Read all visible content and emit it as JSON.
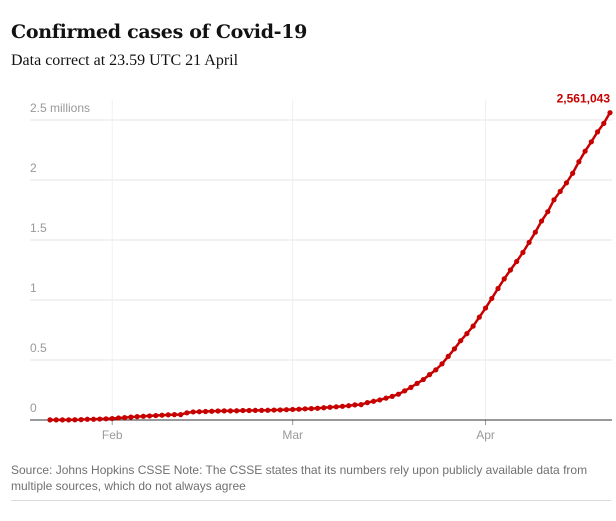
{
  "chart_data": {
    "type": "line",
    "title": "Confirmed cases of Covid-19",
    "subtitle": "Data correct at 23.59 UTC 21 April",
    "source": "Source: Johns Hopkins CSSE Note: The CSSE states that its numbers rely upon publicly available data from multiple sources, which do not always agree",
    "x": [
      0,
      1,
      2,
      3,
      4,
      5,
      6,
      7,
      8,
      9,
      10,
      11,
      12,
      13,
      14,
      15,
      16,
      17,
      18,
      19,
      20,
      21,
      22,
      23,
      24,
      25,
      26,
      27,
      28,
      29,
      30,
      31,
      32,
      33,
      34,
      35,
      36,
      37,
      38,
      39,
      40,
      41,
      42,
      43,
      44,
      45,
      46,
      47,
      48,
      49,
      50,
      51,
      52,
      53,
      54,
      55,
      56,
      57,
      58,
      59,
      60,
      61,
      62,
      63,
      64,
      65,
      66,
      67,
      68,
      69,
      70,
      71,
      72,
      73,
      74,
      75,
      76,
      77,
      78,
      79,
      80,
      81,
      82,
      83,
      84,
      85,
      86,
      87,
      88,
      89,
      90
    ],
    "xlim": [
      0,
      90
    ],
    "xticks": [
      {
        "value": 10,
        "label": "Feb"
      },
      {
        "value": 39,
        "label": "Mar"
      },
      {
        "value": 70,
        "label": "Apr"
      }
    ],
    "ylim": [
      0,
      2.5
    ],
    "yticks": [
      0,
      0.5,
      1,
      1.5,
      2,
      {
        "value": 2.5,
        "label": "2.5 millions"
      }
    ],
    "grid": true,
    "series": [
      {
        "color": "#c70000",
        "values": [
          0.001,
          0.001,
          0.001,
          0.001,
          0.002,
          0.003,
          0.006,
          0.006,
          0.008,
          0.01,
          0.012,
          0.017,
          0.02,
          0.024,
          0.028,
          0.031,
          0.034,
          0.037,
          0.04,
          0.043,
          0.045,
          0.045,
          0.06,
          0.067,
          0.069,
          0.071,
          0.073,
          0.075,
          0.076,
          0.076,
          0.077,
          0.079,
          0.079,
          0.08,
          0.08,
          0.081,
          0.083,
          0.084,
          0.086,
          0.088,
          0.09,
          0.093,
          0.095,
          0.098,
          0.102,
          0.106,
          0.11,
          0.114,
          0.119,
          0.126,
          0.128,
          0.145,
          0.156,
          0.167,
          0.182,
          0.197,
          0.215,
          0.243,
          0.272,
          0.305,
          0.337,
          0.378,
          0.418,
          0.468,
          0.53,
          0.593,
          0.661,
          0.72,
          0.782,
          0.857,
          0.933,
          1.013,
          1.096,
          1.176,
          1.25,
          1.321,
          1.396,
          1.48,
          1.565,
          1.658,
          1.736,
          1.835,
          1.905,
          1.976,
          2.056,
          2.152,
          2.24,
          2.318,
          2.401,
          2.472,
          2.561043
        ],
        "value_labels": [
          null,
          null,
          null,
          null,
          null,
          null,
          null,
          null,
          null,
          null,
          null,
          null,
          null,
          null,
          null,
          null,
          null,
          null,
          null,
          null,
          null,
          null,
          null,
          null,
          null,
          null,
          null,
          null,
          null,
          null,
          null,
          null,
          null,
          null,
          null,
          null,
          null,
          null,
          null,
          null,
          null,
          null,
          null,
          null,
          null,
          null,
          null,
          null,
          null,
          null,
          null,
          null,
          null,
          null,
          null,
          null,
          null,
          null,
          null,
          null,
          null,
          null,
          null,
          null,
          null,
          null,
          null,
          null,
          null,
          null,
          null,
          null,
          null,
          null,
          null,
          null,
          null,
          null,
          null,
          null,
          null,
          null,
          null,
          null,
          null,
          null,
          null,
          null,
          null,
          null,
          "2,561,043"
        ]
      }
    ]
  }
}
